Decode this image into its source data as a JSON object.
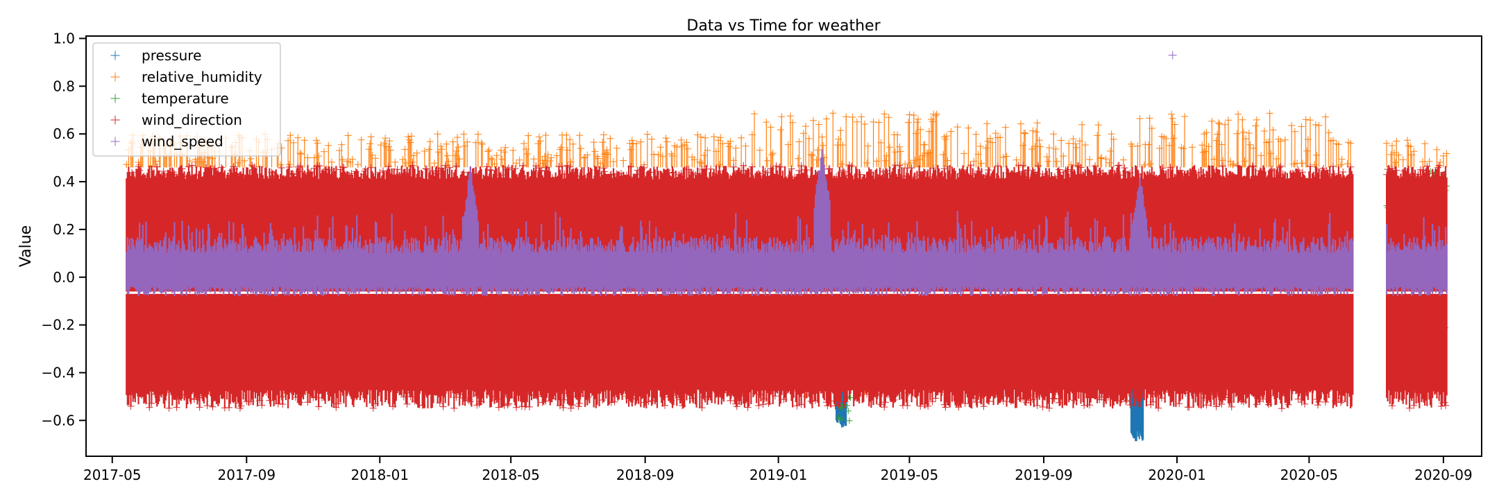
{
  "chart_data": {
    "type": "scatter",
    "title": "Data vs Time for weather",
    "xlabel": "",
    "ylabel": "Value",
    "xlim": [
      "2017-04-07",
      "2020-10-06"
    ],
    "ylim": [
      -0.75,
      1.01
    ],
    "grid": false,
    "marker": "+",
    "legend_position": "top-left",
    "x_ticks": [
      "2017-05",
      "2017-09",
      "2018-01",
      "2018-05",
      "2018-09",
      "2019-01",
      "2019-05",
      "2019-09",
      "2020-01",
      "2020-05",
      "2020-09"
    ],
    "y_ticks": [
      "1.0",
      "0.8",
      "0.6",
      "0.4",
      "0.2",
      "0.0",
      "−0.2",
      "−0.4",
      "−0.6"
    ],
    "y_tick_values": [
      1.0,
      0.8,
      0.6,
      0.4,
      0.2,
      0.0,
      -0.2,
      -0.4,
      -0.6
    ],
    "data_range": [
      "2017-05-14",
      "2020-09-04"
    ],
    "gaps": [
      [
        "2020-06-10",
        "2020-07-11"
      ]
    ],
    "series": [
      {
        "name": "pressure",
        "color": "#1f77b4",
        "y_range": [
          -0.69,
          0.08
        ],
        "excursions": [
          {
            "start": "2019-02-23",
            "end": "2019-03-04",
            "min": -0.63
          },
          {
            "start": "2019-11-20",
            "end": "2019-12-01",
            "min": -0.69
          }
        ]
      },
      {
        "name": "relative_humidity",
        "color": "#ff7f0e",
        "y_range": [
          -0.55,
          0.69
        ],
        "peaks": [
          {
            "start": "2017-05-14",
            "end": "2018-12-01",
            "max": 0.6
          },
          {
            "start": "2018-12-01",
            "end": "2019-06-01",
            "max": 0.69
          },
          {
            "start": "2019-06-01",
            "end": "2019-11-10",
            "max": 0.65
          },
          {
            "start": "2019-11-10",
            "end": "2020-05-20",
            "max": 0.69
          },
          {
            "start": "2020-05-20",
            "end": "2020-09-04",
            "max": 0.58
          }
        ]
      },
      {
        "name": "temperature",
        "color": "#2ca02c",
        "y_range": [
          -0.55,
          0.47
        ]
      },
      {
        "name": "wind_direction",
        "color": "#d62728",
        "y_range": [
          -0.55,
          0.47
        ]
      },
      {
        "name": "wind_speed",
        "color": "#9467bd",
        "y_range": [
          -0.08,
          0.93
        ],
        "outlier": {
          "x": "2019-12-28",
          "y": 0.93
        },
        "peaks": [
          {
            "x": "2019-02-10",
            "y": 0.55
          },
          {
            "x": "2019-11-28",
            "y": 0.45
          },
          {
            "x": "2018-03-25",
            "y": 0.47
          }
        ]
      }
    ]
  }
}
